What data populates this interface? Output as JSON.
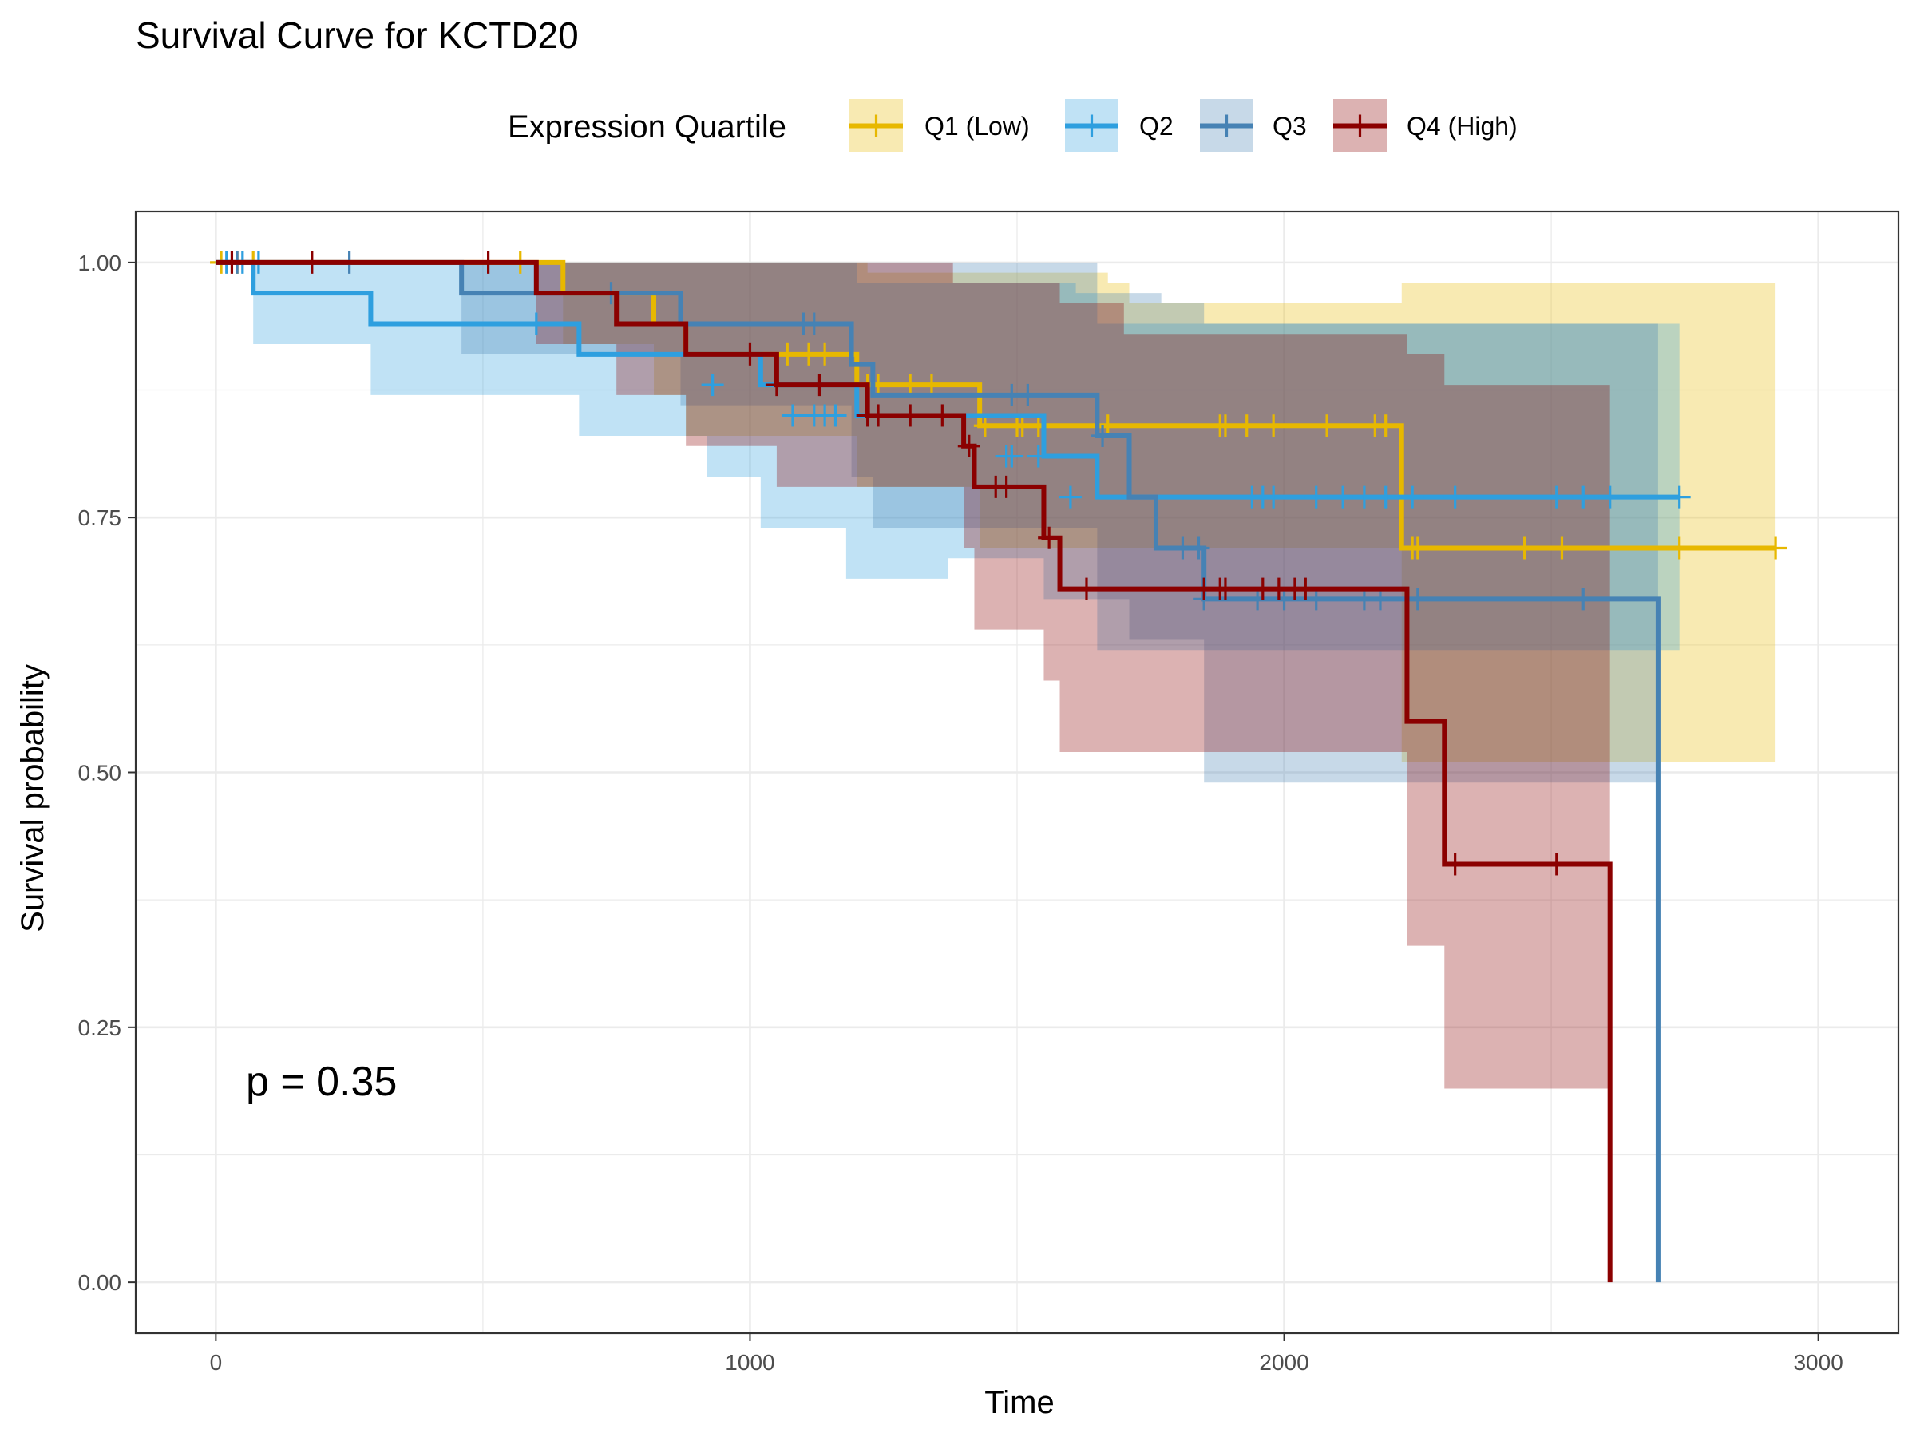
{
  "chart_data": {
    "type": "line",
    "title": "Survival Curve for KCTD20",
    "xlabel": "Time",
    "ylabel": "Survival probability",
    "xlim": [
      -150,
      3150
    ],
    "ylim": [
      -0.05,
      1.05
    ],
    "xticks": [
      0,
      1000,
      2000,
      3000
    ],
    "xtick_labels": [
      "0",
      "1000",
      "2000",
      "3000"
    ],
    "yticks": [
      0,
      0.25,
      0.5,
      0.75,
      1.0
    ],
    "ytick_labels": [
      "0.00",
      "0.25",
      "0.50",
      "0.75",
      "1.00"
    ],
    "grid": true,
    "legend": {
      "title": "Expression Quartile",
      "placement": "top"
    },
    "annotation": "p = 0.35",
    "series": [
      {
        "name": "Q1 (Low)",
        "color": "#E7B800",
        "steps": [
          [
            0,
            1.0
          ],
          [
            650,
            0.97
          ],
          [
            820,
            0.94
          ],
          [
            880,
            0.91
          ],
          [
            1200,
            0.88
          ],
          [
            1430,
            0.84
          ],
          [
            2220,
            0.72
          ],
          [
            2920,
            0.72
          ]
        ],
        "ci_upper": [
          [
            0,
            1.0
          ],
          [
            820,
            1.0
          ],
          [
            1170,
            1.0
          ],
          [
            1220,
            0.99
          ],
          [
            1670,
            0.98
          ],
          [
            1710,
            0.96
          ],
          [
            2220,
            0.98
          ],
          [
            2920,
            0.98
          ]
        ],
        "ci_lower": [
          [
            0,
            1.0
          ],
          [
            650,
            0.92
          ],
          [
            820,
            0.87
          ],
          [
            880,
            0.83
          ],
          [
            1200,
            0.78
          ],
          [
            1430,
            0.72
          ],
          [
            2220,
            0.51
          ],
          [
            2920,
            0.51
          ]
        ],
        "censored": [
          [
            10,
            1.0
          ],
          [
            40,
            1.0
          ],
          [
            70,
            1.0
          ],
          [
            570,
            1.0
          ],
          [
            1070,
            0.91
          ],
          [
            1110,
            0.91
          ],
          [
            1140,
            0.91
          ],
          [
            1220,
            0.88
          ],
          [
            1240,
            0.88
          ],
          [
            1300,
            0.88
          ],
          [
            1340,
            0.88
          ],
          [
            1440,
            0.84
          ],
          [
            1500,
            0.84
          ],
          [
            1510,
            0.84
          ],
          [
            1540,
            0.84
          ],
          [
            1650,
            0.84
          ],
          [
            1670,
            0.84
          ],
          [
            1880,
            0.84
          ],
          [
            1890,
            0.84
          ],
          [
            1930,
            0.84
          ],
          [
            1980,
            0.84
          ],
          [
            2080,
            0.84
          ],
          [
            2170,
            0.84
          ],
          [
            2190,
            0.84
          ],
          [
            2240,
            0.72
          ],
          [
            2250,
            0.72
          ],
          [
            2450,
            0.72
          ],
          [
            2520,
            0.72
          ],
          [
            2740,
            0.72
          ],
          [
            2920,
            0.72
          ]
        ]
      },
      {
        "name": "Q2",
        "color": "#2E9FDF",
        "steps": [
          [
            0,
            1.0
          ],
          [
            70,
            0.97
          ],
          [
            290,
            0.94
          ],
          [
            680,
            0.91
          ],
          [
            1020,
            0.88
          ],
          [
            1200,
            0.85
          ],
          [
            1550,
            0.81
          ],
          [
            1650,
            0.77
          ],
          [
            2740,
            0.77
          ]
        ],
        "ci_upper": [
          [
            0,
            1.0
          ],
          [
            1080,
            1.0
          ],
          [
            1200,
            0.98
          ],
          [
            1610,
            0.97
          ],
          [
            1650,
            0.94
          ],
          [
            2740,
            0.94
          ]
        ],
        "ci_lower": [
          [
            0,
            1.0
          ],
          [
            70,
            0.92
          ],
          [
            290,
            0.87
          ],
          [
            680,
            0.83
          ],
          [
            920,
            0.79
          ],
          [
            1020,
            0.74
          ],
          [
            1180,
            0.69
          ],
          [
            1370,
            0.71
          ],
          [
            1550,
            0.67
          ],
          [
            1650,
            0.62
          ],
          [
            2740,
            0.62
          ]
        ],
        "censored": [
          [
            20,
            1.0
          ],
          [
            50,
            1.0
          ],
          [
            80,
            1.0
          ],
          [
            600,
            0.94
          ],
          [
            930,
            0.88
          ],
          [
            1080,
            0.85
          ],
          [
            1120,
            0.85
          ],
          [
            1140,
            0.85
          ],
          [
            1160,
            0.85
          ],
          [
            1480,
            0.81
          ],
          [
            1490,
            0.81
          ],
          [
            1540,
            0.81
          ],
          [
            1600,
            0.77
          ],
          [
            1940,
            0.77
          ],
          [
            1960,
            0.77
          ],
          [
            1980,
            0.77
          ],
          [
            2060,
            0.77
          ],
          [
            2110,
            0.77
          ],
          [
            2150,
            0.77
          ],
          [
            2190,
            0.77
          ],
          [
            2240,
            0.77
          ],
          [
            2320,
            0.77
          ],
          [
            2510,
            0.77
          ],
          [
            2560,
            0.77
          ],
          [
            2610,
            0.77
          ],
          [
            2740,
            0.77
          ]
        ]
      },
      {
        "name": "Q3",
        "color": "#4682B4",
        "steps": [
          [
            0,
            1.0
          ],
          [
            460,
            0.97
          ],
          [
            870,
            0.94
          ],
          [
            1190,
            0.9
          ],
          [
            1230,
            0.87
          ],
          [
            1650,
            0.83
          ],
          [
            1710,
            0.77
          ],
          [
            1760,
            0.72
          ],
          [
            1850,
            0.67
          ],
          [
            2700,
            0.67
          ],
          [
            2700,
            0.0
          ]
        ],
        "ci_upper": [
          [
            0,
            1.0
          ],
          [
            1650,
            1.0
          ],
          [
            1650,
            0.97
          ],
          [
            1770,
            0.96
          ],
          [
            1850,
            0.94
          ],
          [
            2700,
            0.94
          ]
        ],
        "ci_lower": [
          [
            0,
            1.0
          ],
          [
            460,
            0.91
          ],
          [
            870,
            0.86
          ],
          [
            1190,
            0.79
          ],
          [
            1230,
            0.74
          ],
          [
            1650,
            0.67
          ],
          [
            1710,
            0.63
          ],
          [
            1850,
            0.49
          ],
          [
            2700,
            0.49
          ]
        ],
        "censored": [
          [
            40,
            1.0
          ],
          [
            250,
            1.0
          ],
          [
            740,
            0.97
          ],
          [
            1100,
            0.94
          ],
          [
            1120,
            0.94
          ],
          [
            1490,
            0.87
          ],
          [
            1520,
            0.87
          ],
          [
            1660,
            0.83
          ],
          [
            1810,
            0.72
          ],
          [
            1840,
            0.72
          ],
          [
            1850,
            0.67
          ],
          [
            1950,
            0.67
          ],
          [
            2000,
            0.67
          ],
          [
            2060,
            0.67
          ],
          [
            2150,
            0.67
          ],
          [
            2180,
            0.67
          ],
          [
            2250,
            0.67
          ],
          [
            2560,
            0.67
          ]
        ]
      },
      {
        "name": "Q4 (High)",
        "color": "#8B0000",
        "steps": [
          [
            0,
            1.0
          ],
          [
            600,
            0.97
          ],
          [
            750,
            0.94
          ],
          [
            880,
            0.91
          ],
          [
            1050,
            0.88
          ],
          [
            1220,
            0.85
          ],
          [
            1400,
            0.82
          ],
          [
            1420,
            0.78
          ],
          [
            1550,
            0.73
          ],
          [
            1580,
            0.68
          ],
          [
            2230,
            0.55
          ],
          [
            2300,
            0.41
          ],
          [
            2610,
            0.41
          ],
          [
            2610,
            0.0
          ]
        ],
        "ci_upper": [
          [
            0,
            1.0
          ],
          [
            1380,
            1.0
          ],
          [
            1380,
            0.98
          ],
          [
            1580,
            0.96
          ],
          [
            1700,
            0.93
          ],
          [
            2230,
            0.91
          ],
          [
            2300,
            0.88
          ],
          [
            2610,
            0.88
          ]
        ],
        "ci_lower": [
          [
            0,
            1.0
          ],
          [
            600,
            0.92
          ],
          [
            750,
            0.87
          ],
          [
            880,
            0.82
          ],
          [
            1050,
            0.78
          ],
          [
            1400,
            0.72
          ],
          [
            1420,
            0.64
          ],
          [
            1550,
            0.59
          ],
          [
            1580,
            0.52
          ],
          [
            2230,
            0.33
          ],
          [
            2300,
            0.19
          ],
          [
            2610,
            0.19
          ]
        ],
        "censored": [
          [
            30,
            1.0
          ],
          [
            180,
            1.0
          ],
          [
            510,
            1.0
          ],
          [
            1000,
            0.91
          ],
          [
            1050,
            0.88
          ],
          [
            1130,
            0.88
          ],
          [
            1220,
            0.85
          ],
          [
            1240,
            0.85
          ],
          [
            1300,
            0.85
          ],
          [
            1360,
            0.85
          ],
          [
            1410,
            0.82
          ],
          [
            1460,
            0.78
          ],
          [
            1480,
            0.78
          ],
          [
            1560,
            0.73
          ],
          [
            1630,
            0.68
          ],
          [
            1850,
            0.68
          ],
          [
            1880,
            0.68
          ],
          [
            1890,
            0.68
          ],
          [
            1960,
            0.68
          ],
          [
            1990,
            0.68
          ],
          [
            2020,
            0.68
          ],
          [
            2040,
            0.68
          ],
          [
            2320,
            0.41
          ],
          [
            2510,
            0.41
          ]
        ]
      }
    ]
  }
}
